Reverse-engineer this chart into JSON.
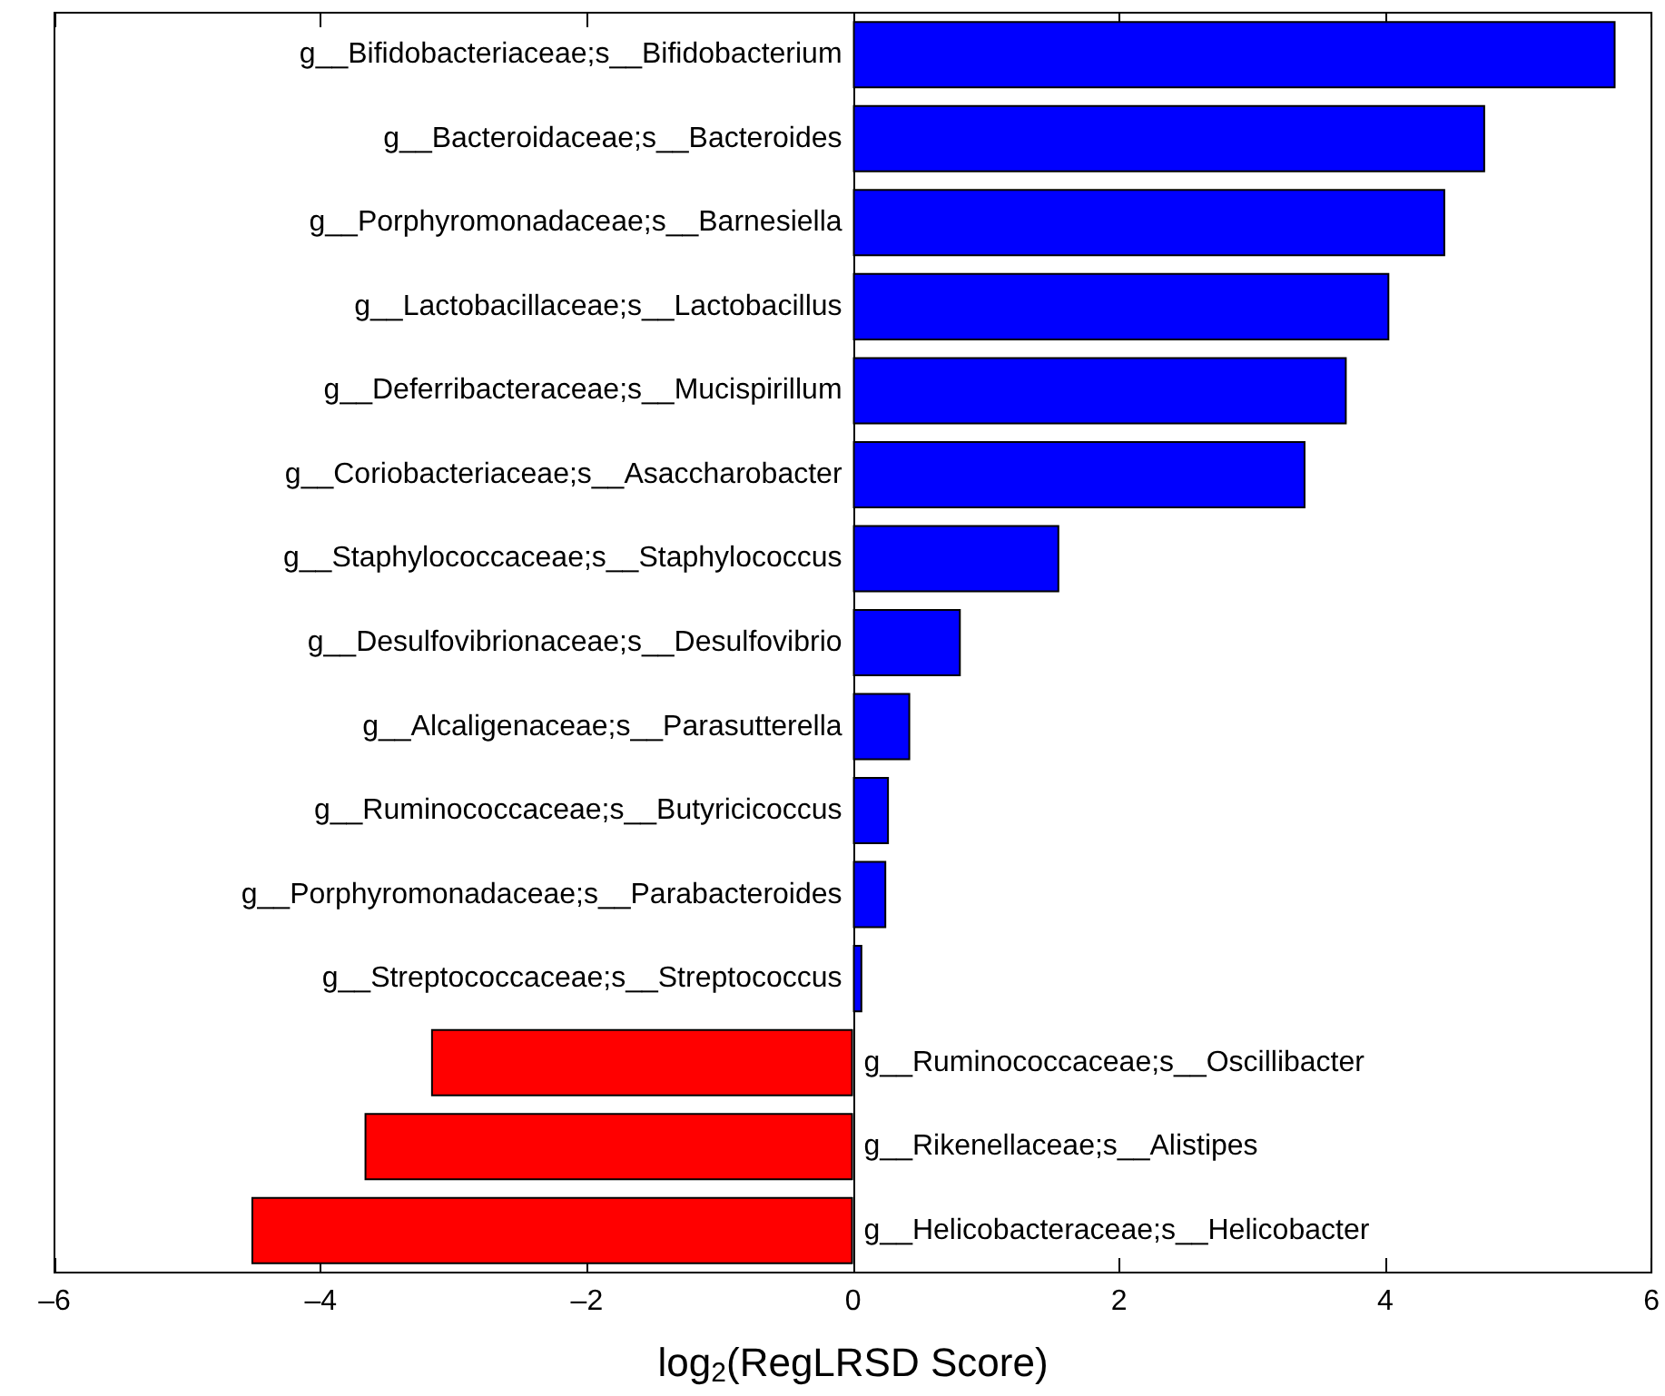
{
  "chart_data": {
    "type": "bar",
    "orientation": "horizontal",
    "xlabel": "log$_{2}$(RegLRSD Score)",
    "categories": [
      "g__Bifidobacteriaceae;s__Bifidobacterium",
      "g__Bacteroidaceae;s__Bacteroides",
      "g__Porphyromonadaceae;s__Barnesiella",
      "g__Lactobacillaceae;s__Lactobacillus",
      "g__Deferribacteraceae;s__Mucispirillum",
      "g__Coriobacteriaceae;s__Asaccharobacter",
      "g__Staphylococcaceae;s__Staphylococcus",
      "g__Desulfovibrionaceae;s__Desulfovibrio",
      "g__Alcaligenaceae;s__Parasutterella",
      "g__Ruminococcaceae;s__Butyricicoccus",
      "g__Porphyromonadaceae;s__Parabacteroides",
      "g__Streptococcaceae;s__Streptococcus",
      "g__Ruminococcaceae;s__Oscillibacter",
      "g__Rikenellaceae;s__Alistipes",
      "g__Helicobacteraceae;s__Helicobacter"
    ],
    "values": [
      5.73,
      4.75,
      4.45,
      4.03,
      3.71,
      3.4,
      1.55,
      0.81,
      0.43,
      0.27,
      0.25,
      0.07,
      -3.17,
      -3.67,
      -4.52
    ],
    "colors": [
      "#0000ff",
      "#0000ff",
      "#0000ff",
      "#0000ff",
      "#0000ff",
      "#0000ff",
      "#0000ff",
      "#0000ff",
      "#0000ff",
      "#0000ff",
      "#0000ff",
      "#0000ff",
      "#ff0000",
      "#ff0000",
      "#ff0000"
    ],
    "xlim": [
      -6,
      6
    ],
    "xticks": [
      {
        "value": -6,
        "label": "–6"
      },
      {
        "value": -4,
        "label": "–4"
      },
      {
        "value": -2,
        "label": "–2"
      },
      0,
      2,
      4,
      6
    ],
    "grid": false
  }
}
